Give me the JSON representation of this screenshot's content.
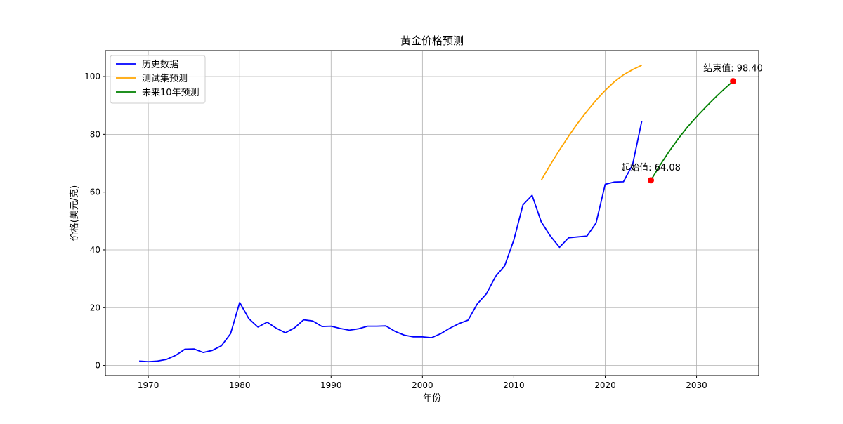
{
  "chart_data": {
    "type": "line",
    "title": "黄金价格预测",
    "xlabel": "年份",
    "ylabel": "价格(美元/克)",
    "xlim": [
      1965.3,
      2036.8
    ],
    "ylim": [
      -3.5,
      109.0
    ],
    "xticks": [
      1970,
      1980,
      1990,
      2000,
      2010,
      2020,
      2030
    ],
    "yticks": [
      0,
      20,
      40,
      60,
      80,
      100
    ],
    "grid": true,
    "legend_position": "top-left",
    "series": [
      {
        "name": "历史数据",
        "color": "#0000ff",
        "x": [
          1969,
          1970,
          1971,
          1972,
          1973,
          1974,
          1975,
          1976,
          1977,
          1978,
          1979,
          1980,
          1981,
          1982,
          1983,
          1984,
          1985,
          1986,
          1987,
          1988,
          1989,
          1990,
          1991,
          1992,
          1993,
          1994,
          1995,
          1996,
          1997,
          1998,
          1999,
          2000,
          2001,
          2002,
          2003,
          2004,
          2005,
          2006,
          2007,
          2008,
          2009,
          2010,
          2011,
          2012,
          2013,
          2014,
          2015,
          2016,
          2017,
          2018,
          2019,
          2020,
          2021,
          2022,
          2023,
          2024
        ],
        "y": [
          1.5,
          1.3,
          1.5,
          2.1,
          3.5,
          5.6,
          5.7,
          4.5,
          5.2,
          6.8,
          11.0,
          21.8,
          16.2,
          13.3,
          15.0,
          12.9,
          11.3,
          13.0,
          15.8,
          15.4,
          13.5,
          13.6,
          12.8,
          12.2,
          12.7,
          13.6,
          13.6,
          13.7,
          11.8,
          10.5,
          9.9,
          9.9,
          9.6,
          11.0,
          12.9,
          14.5,
          15.7,
          21.3,
          24.8,
          30.8,
          34.5,
          43.4,
          55.6,
          58.9,
          49.7,
          44.8,
          40.9,
          44.2,
          44.5,
          44.8,
          49.3,
          62.7,
          63.5,
          63.6,
          69.5,
          84.5
        ]
      },
      {
        "name": "测试集预测",
        "color": "#ffa500",
        "x": [
          2013,
          2014,
          2015,
          2016,
          2017,
          2018,
          2019,
          2020,
          2021,
          2022,
          2023,
          2024
        ],
        "y": [
          64.1,
          69.5,
          74.6,
          79.4,
          83.9,
          88.0,
          91.8,
          95.2,
          98.2,
          100.6,
          102.4,
          103.9
        ]
      },
      {
        "name": "未来10年预测",
        "color": "#008000",
        "x": [
          2025,
          2026,
          2027,
          2028,
          2029,
          2030,
          2031,
          2032,
          2033,
          2034
        ],
        "y": [
          64.08,
          69.3,
          74.1,
          78.5,
          82.5,
          86.1,
          89.4,
          92.6,
          95.6,
          98.4
        ]
      }
    ],
    "points": [
      {
        "x": 2025,
        "y": 64.08,
        "color": "#ff0000"
      },
      {
        "x": 2034,
        "y": 98.4,
        "color": "#ff0000"
      }
    ],
    "annotations": [
      {
        "text": "起始值: 64.08",
        "x": 2025,
        "y": 64.08
      },
      {
        "text": "结束值: 98.40",
        "x": 2034,
        "y": 98.4
      }
    ]
  }
}
